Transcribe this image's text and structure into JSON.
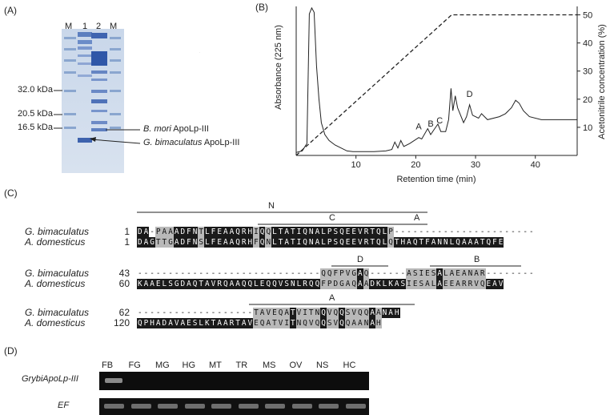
{
  "panels": {
    "a": "(A)",
    "b": "(B)",
    "c": "(C)",
    "d": "(D)"
  },
  "gel_a": {
    "lanes": [
      "M",
      "1",
      "2",
      "M"
    ],
    "markers": [
      "32.0 kDa",
      "20.5 kDa",
      "16.5 kDa"
    ],
    "annotations": [
      {
        "species": "B. mori",
        "protein": "ApoLp-III"
      },
      {
        "species": "G. bimaculatus",
        "protein": "ApoLp-III"
      }
    ]
  },
  "chart_data": {
    "type": "line",
    "title": "",
    "xlabel": "Retention time (min)",
    "ylabel": "Absorbance (225 nm)",
    "y2label": "Acetonitrile concentration (%)",
    "x_ticks": [
      10,
      20,
      30,
      40
    ],
    "y2_ticks": [
      10,
      20,
      30,
      40,
      50
    ],
    "xlim": [
      0,
      47
    ],
    "y2lim": [
      0,
      53
    ],
    "peak_labels": [
      {
        "label": "A",
        "x": 20.5
      },
      {
        "label": "B",
        "x": 22.5
      },
      {
        "label": "C",
        "x": 24.0
      },
      {
        "label": "D",
        "x": 29.0
      }
    ],
    "absorbance": [
      [
        0,
        2
      ],
      [
        1,
        3
      ],
      [
        1.8,
        8
      ],
      [
        2.2,
        95
      ],
      [
        2.6,
        99
      ],
      [
        3.0,
        96
      ],
      [
        3.4,
        60
      ],
      [
        3.8,
        38
      ],
      [
        4.2,
        22
      ],
      [
        4.8,
        14
      ],
      [
        5.5,
        10
      ],
      [
        6.5,
        7
      ],
      [
        7.5,
        5
      ],
      [
        8.5,
        3
      ],
      [
        9.5,
        2.5
      ],
      [
        11,
        2.5
      ],
      [
        13,
        2.5
      ],
      [
        15,
        3
      ],
      [
        16,
        4
      ],
      [
        16.5,
        9
      ],
      [
        17,
        5
      ],
      [
        17.5,
        10
      ],
      [
        18,
        6
      ],
      [
        19,
        8
      ],
      [
        20.5,
        12
      ],
      [
        21,
        11
      ],
      [
        22,
        18
      ],
      [
        22.5,
        14
      ],
      [
        23,
        17
      ],
      [
        23.7,
        21
      ],
      [
        24.2,
        16
      ],
      [
        25,
        16
      ],
      [
        25.5,
        24
      ],
      [
        25.9,
        45
      ],
      [
        26.2,
        30
      ],
      [
        26.6,
        40
      ],
      [
        27,
        32
      ],
      [
        28,
        22
      ],
      [
        28.5,
        26
      ],
      [
        29,
        34
      ],
      [
        29.5,
        27
      ],
      [
        30.5,
        25
      ],
      [
        31,
        28
      ],
      [
        32,
        24
      ],
      [
        34,
        26
      ],
      [
        35,
        28
      ],
      [
        36,
        32
      ],
      [
        36.7,
        37
      ],
      [
        37.3,
        35
      ],
      [
        38,
        30
      ],
      [
        39,
        26
      ],
      [
        41,
        24
      ],
      [
        44,
        24
      ],
      [
        47,
        24
      ]
    ],
    "acetonitrile": [
      [
        0,
        0
      ],
      [
        26,
        50
      ],
      [
        47,
        50
      ]
    ]
  },
  "alignment": {
    "species_1": "G. bimaculatus",
    "species_2": "A. domesticus",
    "blocks": [
      {
        "nums": [
          "1",
          "1"
        ],
        "seq_1": "DA-PAAADFNTLFEAAQRHIQQLTATIQNALPSQEEVRTQLP-----------------------",
        "seq_2": "DAGTTGADFNSLFEAAQRHFQNLTATIQNALPSQEEVRTQLQTHAQTFANNLQAAATQFE",
        "regions": [
          {
            "label": "N"
          },
          {
            "label": "C"
          },
          {
            "label": "A"
          }
        ]
      },
      {
        "nums": [
          "43",
          "60"
        ],
        "seq_1": "------------------------------QQFPVGAQ------ASIESALAEANAR--------",
        "seq_2": "KAAELSGDAQTAVRQAAQQLEQQVSNLRQQFPDGAQAADKLKASIESALAEEARRVQEAV",
        "regions": [
          {
            "label": "D"
          },
          {
            "label": "B"
          }
        ]
      },
      {
        "nums": [
          "62",
          "120"
        ],
        "seq_1": "-------------------TAVEQATVITNQVQQSVQQAANAH",
        "seq_2": "QPHADAVAESLKTAARTAVEQATVITNQVQQSVQQAANAH",
        "regions": [
          {
            "label": "A"
          }
        ]
      }
    ]
  },
  "gel_d": {
    "lanes": [
      "FB",
      "FG",
      "MG",
      "HG",
      "MT",
      "TR",
      "MS",
      "OV",
      "NS",
      "HC"
    ],
    "rows": [
      "GrybiApoLp-III",
      "EF"
    ]
  }
}
